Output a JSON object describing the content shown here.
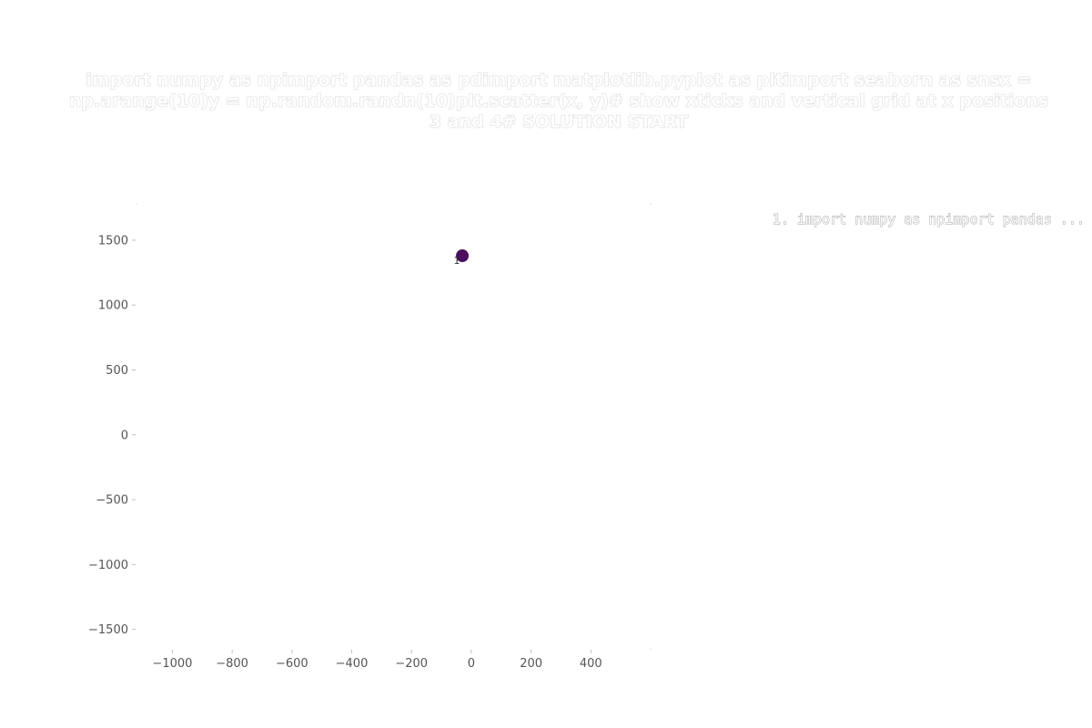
{
  "chart_data": {
    "type": "scatter",
    "title": "import numpy as npimport pandas as pdimport matplotlib.pyplot as pltimport seaborn as snsx = np.arange(10)y = np.random.randn(10)plt.scatter(x, y)# show xticks and vertical grid at x positions 3 and 4# SOLUTION START",
    "title_lines": [
      "import numpy as npimport pandas as pdimport matplotlib.pyplot as pltimport seaborn as snsx =",
      "np.arange(10)y = np.random.randn(10)plt.scatter(x, y)# show xticks and vertical grid at x positions",
      "3 and 4# SOLUTION START"
    ],
    "xlabel": "",
    "ylabel": "",
    "xlim": [
      -1120,
      600
    ],
    "ylim": [
      -1650,
      1780
    ],
    "xticks": [
      -1000,
      -800,
      -600,
      -400,
      -200,
      0,
      200,
      400
    ],
    "xtick_labels": [
      "−1000",
      "−800",
      "−600",
      "−400",
      "−200",
      "0",
      "200",
      "400"
    ],
    "yticks": [
      1500,
      1000,
      500,
      0,
      -500,
      -1000,
      -1500
    ],
    "ytick_labels": [
      "1500",
      "1000",
      "500",
      "0",
      "−500",
      "−1000",
      "−1500"
    ],
    "grid": false,
    "legend_position": "top-right",
    "legend_entries": [
      "1. import numpy as npimport pandas ..."
    ],
    "points": [
      {
        "x": -30,
        "y": 1380,
        "label": "1",
        "color": "#4a0f5c"
      }
    ]
  }
}
